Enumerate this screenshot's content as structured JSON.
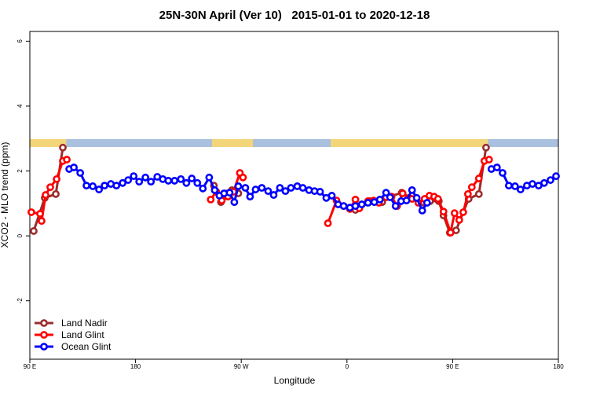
{
  "chart_data": {
    "type": "line",
    "title": "25N-30N April (Ver 10)   2015-01-01 to 2020-12-18",
    "xlabel": "Longitude",
    "ylabel": "XCO2 - MLO trend (ppm)",
    "xlim": [
      90,
      540
    ],
    "ylim": [
      -3.8,
      6.3
    ],
    "xticks": [
      {
        "value": 90,
        "label": "90 E"
      },
      180,
      {
        "value": 270,
        "label": "90 W"
      },
      {
        "value": 360,
        "label": "0"
      },
      {
        "value": 450,
        "label": "90 E"
      },
      {
        "value": 540,
        "label": "180"
      }
    ],
    "yticks": [
      -2,
      0,
      2,
      4,
      6
    ],
    "legend": "bottom-left",
    "land_strip": {
      "land_color": "#f3d57a",
      "ocean_color": "#a9c0df",
      "ranges": [
        [
          90,
          121
        ],
        [
          245,
          280
        ],
        [
          346,
          480
        ]
      ]
    },
    "series": [
      {
        "name": "Land Nadir",
        "color": "#9b2c2c",
        "x": [
          93.3,
          102.7,
          112.1,
          118.1,
          null,
          246.7,
          252.7,
          258.1,
          262.1,
          267.5,
          null,
          362.5,
          367.2,
          372.6,
          379.3,
          390.0,
          396.0,
          406.7,
          412.7,
          425.5,
          430.8,
          438.2,
          442.2,
          447.6,
          452.9,
          463.6,
          472.3,
          478.4
        ],
        "values": [
          0.15,
          1.17,
          1.29,
          2.72,
          null,
          1.55,
          1.04,
          1.31,
          1.41,
          1.31,
          null,
          0.87,
          0.8,
          0.97,
          1.07,
          1.04,
          1.21,
          1.33,
          1.17,
          1.02,
          1.07,
          1.07,
          0.63,
          0.1,
          0.17,
          1.14,
          1.29,
          2.72
        ]
      },
      {
        "name": "Land Glint",
        "color": "#ff0000",
        "x": [
          91.3,
          98.7,
          100.0,
          103.4,
          107.4,
          112.8,
          118.1,
          121.5,
          null,
          244.0,
          248.7,
          253.4,
          258.7,
          263.4,
          268.8,
          271.5,
          null,
          343.8,
          351.1,
          357.2,
          362.5,
          367.2,
          370.6,
          377.9,
          382.6,
          387.3,
          393.3,
          398.0,
          402.7,
          407.4,
          415.4,
          420.8,
          426.1,
          430.2,
          434.2,
          437.5,
          442.2,
          448.2,
          451.6,
          455.6,
          459.0,
          463.0,
          466.3,
          472.3,
          477.0,
          481.0
        ],
        "values": [
          0.73,
          0.68,
          0.46,
          1.26,
          1.5,
          1.75,
          2.31,
          2.35,
          null,
          1.12,
          1.36,
          1.09,
          1.21,
          1.36,
          1.94,
          1.8,
          null,
          0.39,
          1.09,
          0.92,
          0.83,
          1.12,
          0.85,
          1.07,
          1.09,
          1.02,
          1.19,
          1.21,
          0.92,
          1.31,
          1.14,
          1.02,
          1.14,
          1.24,
          1.21,
          1.14,
          0.75,
          0.1,
          0.7,
          0.49,
          0.73,
          1.29,
          1.5,
          1.77,
          2.31,
          2.35
        ]
      },
      {
        "name": "Ocean Glint",
        "color": "#0000ff",
        "x": [
          123.5,
          127.5,
          132.9,
          138.2,
          143.6,
          148.9,
          153.6,
          159.0,
          163.7,
          169.0,
          173.7,
          178.4,
          183.1,
          188.4,
          193.1,
          198.5,
          203.2,
          207.9,
          213.2,
          218.6,
          223.3,
          227.9,
          232.6,
          237.3,
          242.7,
          247.4,
          251.4,
          255.4,
          260.1,
          264.1,
          267.5,
          273.5,
          277.5,
          282.2,
          287.5,
          292.9,
          297.6,
          302.9,
          307.6,
          312.3,
          317.7,
          322.4,
          327.7,
          332.4,
          337.1,
          342.4,
          347.1,
          352.5,
          357.2,
          362.5,
          367.2,
          372.6,
          377.9,
          383.3,
          388.0,
          393.3,
          396.7,
          401.4,
          406.1,
          410.7,
          415.4,
          419.4,
          424.1,
          428.2,
          null,
          483.0,
          487.7,
          492.5,
          497.8,
          503.1,
          507.8,
          513.2,
          517.9,
          523.2,
          527.9,
          533.3,
          538.0
        ],
        "values": [
          2.06,
          2.11,
          1.94,
          1.55,
          1.53,
          1.43,
          1.55,
          1.6,
          1.55,
          1.63,
          1.72,
          1.84,
          1.67,
          1.8,
          1.67,
          1.82,
          1.75,
          1.7,
          1.7,
          1.75,
          1.63,
          1.77,
          1.63,
          1.46,
          1.8,
          1.41,
          1.24,
          1.31,
          1.33,
          1.04,
          1.53,
          1.48,
          1.21,
          1.43,
          1.48,
          1.38,
          1.26,
          1.48,
          1.38,
          1.48,
          1.53,
          1.48,
          1.41,
          1.38,
          1.36,
          1.17,
          1.24,
          0.97,
          0.92,
          0.87,
          0.92,
          0.97,
          1.02,
          1.04,
          1.12,
          1.33,
          1.19,
          0.92,
          1.07,
          1.09,
          1.41,
          1.17,
          0.78,
          1.02,
          null,
          2.06,
          2.11,
          1.94,
          1.55,
          1.53,
          1.43,
          1.55,
          1.6,
          1.55,
          1.63,
          1.72,
          1.84
        ]
      }
    ]
  }
}
